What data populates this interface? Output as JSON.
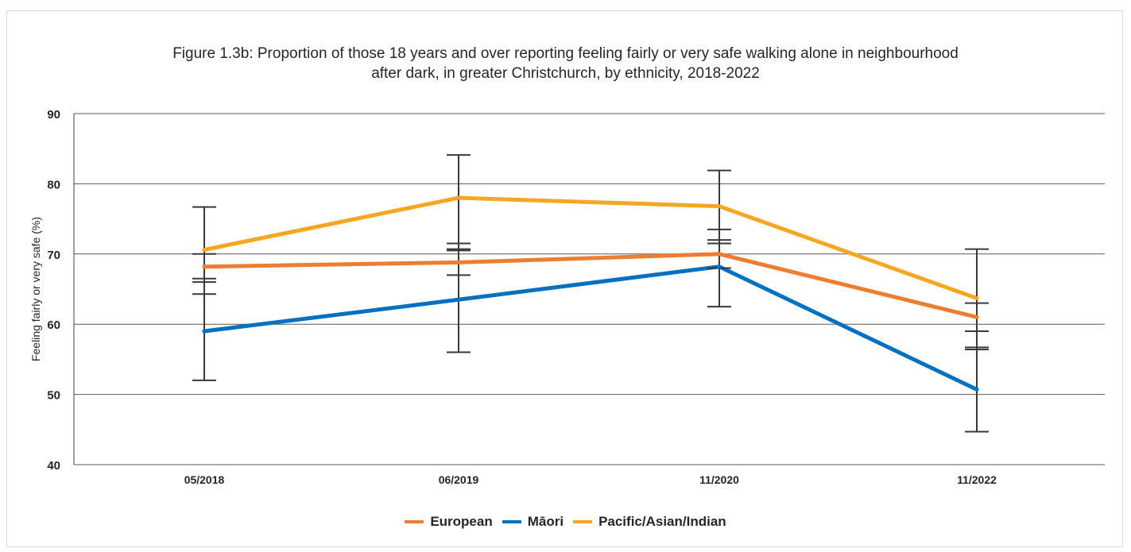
{
  "chart_data": {
    "type": "line",
    "title_lines": [
      "Figure 1.3b: Proportion of those 18 years and over reporting feeling fairly or very safe walking alone in neighbourhood",
      "after dark, in greater Christchurch, by ethnicity, 2018-2022"
    ],
    "xlabel": "",
    "ylabel": "Feeling fairly or very safe (%)",
    "categories": [
      "05/2018",
      "06/2019",
      "11/2020",
      "11/2022"
    ],
    "ylim": [
      40,
      90
    ],
    "yticks": [
      40,
      50,
      60,
      70,
      80,
      90
    ],
    "grid": true,
    "legend_position": "bottom",
    "series": [
      {
        "name": "European",
        "color": "#ed7d31",
        "values": [
          68.2,
          68.8,
          70.0,
          61.0
        ],
        "error_low": [
          66.0,
          67.0,
          68.0,
          59.0
        ],
        "error_high": [
          70.0,
          70.5,
          72.0,
          63.0
        ]
      },
      {
        "name": "Māori",
        "color": "#0070c0",
        "values": [
          59.0,
          63.5,
          68.2,
          50.7
        ],
        "error_low": [
          52.0,
          56.0,
          62.5,
          44.7
        ],
        "error_high": [
          66.5,
          71.5,
          73.5,
          56.7
        ]
      },
      {
        "name": "Pacific/Asian/Indian",
        "color": "#f5a623",
        "values": [
          70.6,
          78.0,
          76.8,
          63.7
        ],
        "error_low": [
          64.3,
          70.7,
          71.5,
          56.4
        ],
        "error_high": [
          76.7,
          84.1,
          81.9,
          70.7
        ]
      }
    ]
  },
  "colors": {
    "grid": "#595959",
    "axis": "#404040",
    "error_bar": "#3a3a3a",
    "text": "#262626"
  }
}
